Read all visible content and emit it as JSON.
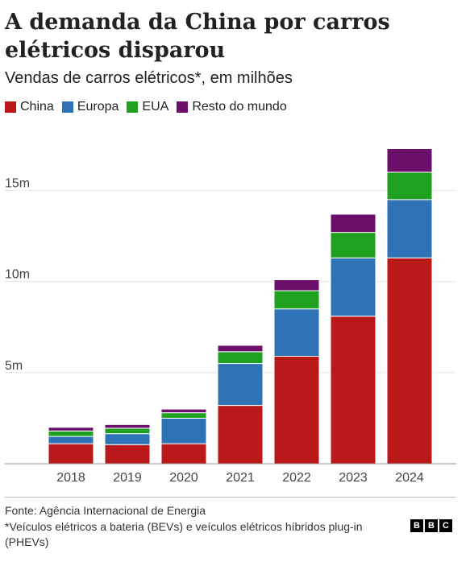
{
  "header": {
    "title": "A demanda da China por carros elétricos disparou",
    "subtitle": "Vendas de carros elétricos*, em milhões"
  },
  "chart_data": {
    "type": "bar",
    "stacked": true,
    "categories": [
      "2018",
      "2019",
      "2020",
      "2021",
      "2022",
      "2023",
      "2024"
    ],
    "series": [
      {
        "name": "China",
        "color": "#bb1919",
        "values": [
          1.1,
          1.05,
          1.1,
          3.2,
          5.9,
          8.1,
          11.3
        ]
      },
      {
        "name": "Europa",
        "color": "#2e73b6",
        "values": [
          0.4,
          0.6,
          1.4,
          2.3,
          2.6,
          3.2,
          3.2
        ]
      },
      {
        "name": "EUA",
        "color": "#1fa01f",
        "values": [
          0.3,
          0.3,
          0.3,
          0.65,
          1.0,
          1.4,
          1.5
        ]
      },
      {
        "name": "Resto do mundo",
        "color": "#6b0f6b",
        "values": [
          0.2,
          0.2,
          0.2,
          0.35,
          0.6,
          1.0,
          1.3
        ]
      }
    ],
    "yticks": [
      5,
      10,
      15
    ],
    "ytick_labels": [
      "5m",
      "10m",
      "15m"
    ],
    "ylim": [
      0,
      17.5
    ],
    "grid": true,
    "legend": "top-left"
  },
  "footer": {
    "source": "Fonte: Agência Internacional de Energia",
    "note": "*Veículos elétricos a bateria (BEVs) e veículos elétricos híbridos plug-in (PHEVs)",
    "logo_letters": [
      "B",
      "B",
      "C"
    ]
  }
}
